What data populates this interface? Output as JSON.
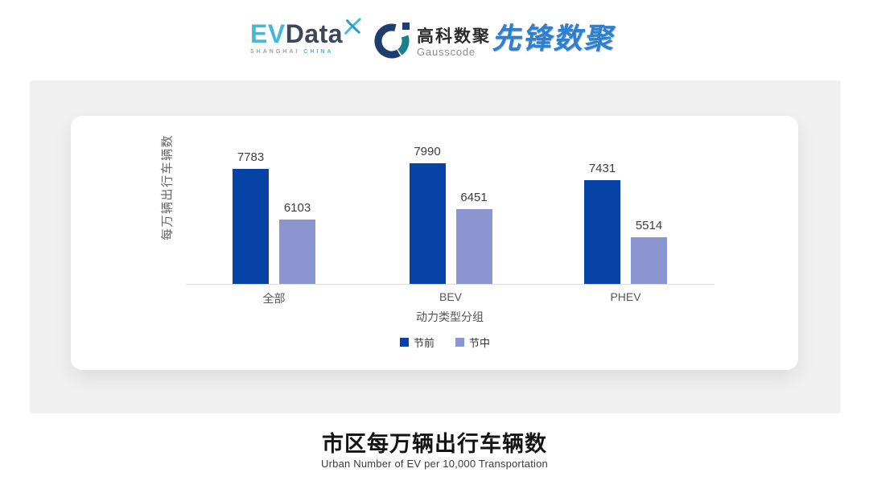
{
  "header": {
    "evdata": {
      "ev": "EV",
      "data": "Data",
      "sub_left": "SHANGHAI",
      "sub_right": "CHINA",
      "accent_color": "#45b8d9",
      "dark_color": "#3d4756"
    },
    "gausscode": {
      "cn": "高科数聚",
      "en": "Gausscode",
      "navy_color": "#1d3e6e",
      "teal_color": "#17808f"
    },
    "pioneer": {
      "text": "先锋数聚",
      "color": "#2e7fce"
    }
  },
  "chart_data": {
    "type": "bar",
    "title": "市区每万辆出行车辆数",
    "subtitle": "Urban Number of EV per 10,000 Transportation",
    "xlabel": "动力类型分组",
    "ylabel": "每万辆出行车辆数",
    "categories": [
      "全部",
      "BEV",
      "PHEV"
    ],
    "series": [
      {
        "name": "节前",
        "color": "#0742a6",
        "values": [
          7783,
          7990,
          7431
        ]
      },
      {
        "name": "节中",
        "color": "#8b96d0",
        "values": [
          6103,
          6451,
          5514
        ]
      }
    ],
    "value_labels_shown": true,
    "legend_position": "bottom",
    "grid": false,
    "ylim_estimate": [
      3950,
      9650
    ],
    "axis_line_color": "#dddddd"
  }
}
